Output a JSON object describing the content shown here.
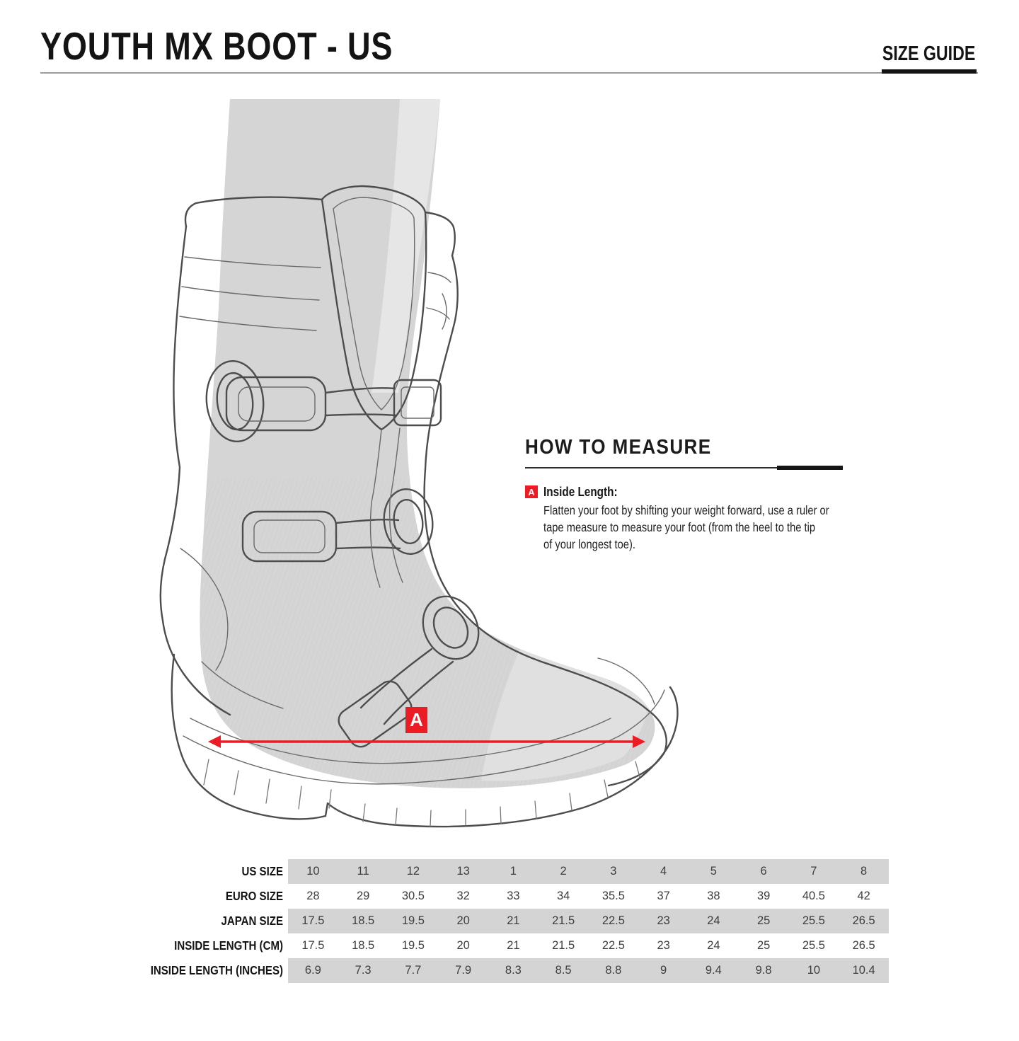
{
  "header": {
    "title": "YOUTH MX BOOT - US",
    "size_guide_label": "SIZE GUIDE"
  },
  "how_to_measure": {
    "heading": "HOW TO MEASURE",
    "marker": "A",
    "term": "Inside Length:",
    "description_lines": [
      "Flatten your foot by shifting your weight forward, use a ruler or",
      "tape measure to measure your foot (from the heel to the tip",
      "of your longest toe)."
    ]
  },
  "diagram": {
    "marker": "A"
  },
  "size_table": {
    "rows": [
      {
        "label": "US SIZE",
        "shaded": true,
        "values": [
          "10",
          "11",
          "12",
          "13",
          "1",
          "2",
          "3",
          "4",
          "5",
          "6",
          "7",
          "8"
        ]
      },
      {
        "label": "EURO SIZE",
        "shaded": false,
        "values": [
          "28",
          "29",
          "30.5",
          "32",
          "33",
          "34",
          "35.5",
          "37",
          "38",
          "39",
          "40.5",
          "42"
        ]
      },
      {
        "label": "JAPAN SIZE",
        "shaded": true,
        "values": [
          "17.5",
          "18.5",
          "19.5",
          "20",
          "21",
          "21.5",
          "22.5",
          "23",
          "24",
          "25",
          "25.5",
          "26.5"
        ]
      },
      {
        "label": "INSIDE LENGTH (CM)",
        "shaded": false,
        "values": [
          "17.5",
          "18.5",
          "19.5",
          "20",
          "21",
          "21.5",
          "22.5",
          "23",
          "24",
          "25",
          "25.5",
          "26.5"
        ]
      },
      {
        "label": "INSIDE LENGTH (INCHES)",
        "shaded": true,
        "values": [
          "6.9",
          "7.3",
          "7.7",
          "7.9",
          "8.3",
          "8.5",
          "8.8",
          "9",
          "9.4",
          "9.8",
          "10",
          "10.4"
        ]
      }
    ]
  },
  "colors": {
    "accent_red": "#ec1c24",
    "row_shade": "#d4d4d4",
    "silhouette_gray": "#d5d5d5"
  }
}
